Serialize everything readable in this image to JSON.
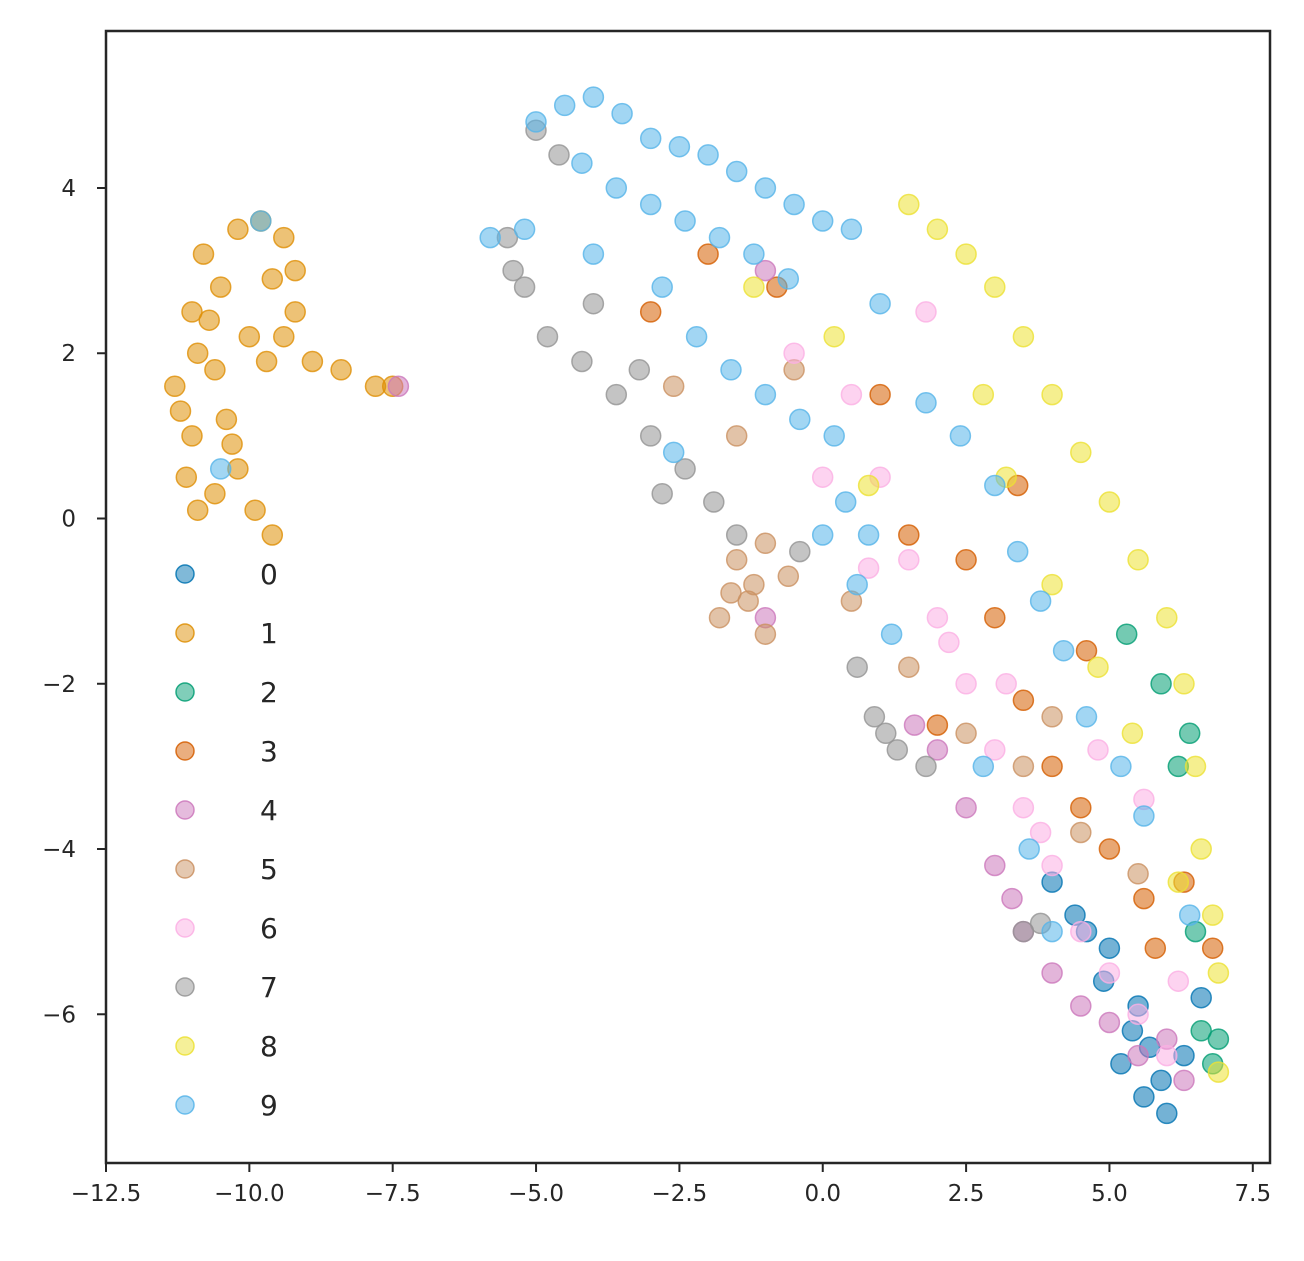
{
  "chart_data": {
    "type": "scatter",
    "title": "",
    "xlabel": "",
    "ylabel": "",
    "xlim": [
      -12.5,
      7.8
    ],
    "ylim": [
      -7.8,
      5.9
    ],
    "grid": false,
    "legend": {
      "placement": "lower-left",
      "entries": [
        "0",
        "1",
        "2",
        "3",
        "4",
        "5",
        "6",
        "7",
        "8",
        "9"
      ]
    },
    "x_ticks": [
      {
        "value": -12.5,
        "label": "−12.5"
      },
      {
        "value": -10.0,
        "label": "−10.0"
      },
      {
        "value": -7.5,
        "label": "−7.5"
      },
      {
        "value": -5.0,
        "label": "−5.0"
      },
      {
        "value": -2.5,
        "label": "−2.5"
      },
      {
        "value": 0.0,
        "label": "0.0"
      },
      {
        "value": 2.5,
        "label": "2.5"
      },
      {
        "value": 5.0,
        "label": "5.0"
      },
      {
        "value": 7.5,
        "label": "7.5"
      }
    ],
    "y_ticks": [
      {
        "value": -6,
        "label": "−6"
      },
      {
        "value": -4,
        "label": "−4"
      },
      {
        "value": -2,
        "label": "−2"
      },
      {
        "value": 0,
        "label": "0"
      },
      {
        "value": 2,
        "label": "2"
      },
      {
        "value": 4,
        "label": "4"
      }
    ],
    "series": [
      {
        "name": "0",
        "color": "#0173b2",
        "points": [
          [
            5.2,
            -6.6
          ],
          [
            5.6,
            -7.0
          ],
          [
            6.0,
            -7.2
          ],
          [
            5.9,
            -6.8
          ],
          [
            5.4,
            -6.2
          ],
          [
            4.9,
            -5.6
          ],
          [
            4.4,
            -4.8
          ],
          [
            4.0,
            -4.4
          ],
          [
            6.3,
            -6.5
          ],
          [
            5.7,
            -6.4
          ],
          [
            5.0,
            -5.2
          ],
          [
            6.6,
            -5.8
          ],
          [
            5.5,
            -5.9
          ],
          [
            4.6,
            -5.0
          ]
        ]
      },
      {
        "name": "1",
        "color": "#de8f05",
        "points": [
          [
            -11.3,
            1.6
          ],
          [
            -11.0,
            2.5
          ],
          [
            -10.8,
            3.2
          ],
          [
            -10.2,
            3.5
          ],
          [
            -9.8,
            3.6
          ],
          [
            -10.5,
            2.8
          ],
          [
            -9.6,
            2.9
          ],
          [
            -9.2,
            2.5
          ],
          [
            -10.0,
            2.2
          ],
          [
            -10.6,
            1.8
          ],
          [
            -9.7,
            1.9
          ],
          [
            -8.9,
            1.9
          ],
          [
            -8.4,
            1.8
          ],
          [
            -7.8,
            1.6
          ],
          [
            -7.5,
            1.6
          ],
          [
            -11.0,
            1.0
          ],
          [
            -11.1,
            0.5
          ],
          [
            -10.9,
            0.1
          ],
          [
            -10.6,
            0.3
          ],
          [
            -10.2,
            0.6
          ],
          [
            -9.9,
            0.1
          ],
          [
            -9.6,
            -0.2
          ],
          [
            -9.4,
            2.2
          ],
          [
            -9.2,
            3.0
          ],
          [
            -10.4,
            1.2
          ],
          [
            -11.2,
            1.3
          ],
          [
            -10.7,
            2.4
          ],
          [
            -9.4,
            3.4
          ],
          [
            -10.9,
            2.0
          ],
          [
            -10.3,
            0.9
          ]
        ]
      },
      {
        "name": "2",
        "color": "#029e73",
        "points": [
          [
            6.6,
            -6.2
          ],
          [
            6.8,
            -6.6
          ],
          [
            6.5,
            -5.0
          ],
          [
            6.2,
            -3.0
          ],
          [
            5.9,
            -2.0
          ],
          [
            6.4,
            -2.6
          ],
          [
            5.3,
            -1.4
          ],
          [
            6.9,
            -6.3
          ]
        ]
      },
      {
        "name": "3",
        "color": "#d55e00",
        "points": [
          [
            1.5,
            -0.2
          ],
          [
            2.5,
            -0.5
          ],
          [
            3.0,
            -1.2
          ],
          [
            3.5,
            -2.2
          ],
          [
            4.0,
            -3.0
          ],
          [
            4.5,
            -3.5
          ],
          [
            5.0,
            -4.0
          ],
          [
            5.6,
            -4.6
          ],
          [
            6.3,
            -4.4
          ],
          [
            6.8,
            -5.2
          ],
          [
            -0.8,
            2.8
          ],
          [
            -2.0,
            3.2
          ],
          [
            -3.0,
            2.5
          ],
          [
            1.0,
            1.5
          ],
          [
            2.0,
            -2.5
          ],
          [
            4.6,
            -1.6
          ],
          [
            5.8,
            -5.2
          ],
          [
            3.4,
            0.4
          ]
        ]
      },
      {
        "name": "4",
        "color": "#cc78bc",
        "points": [
          [
            2.0,
            -2.8
          ],
          [
            2.5,
            -3.5
          ],
          [
            3.0,
            -4.2
          ],
          [
            3.5,
            -5.0
          ],
          [
            4.0,
            -5.5
          ],
          [
            4.5,
            -5.9
          ],
          [
            5.0,
            -6.1
          ],
          [
            5.5,
            -6.5
          ],
          [
            6.3,
            -6.8
          ],
          [
            1.6,
            -2.5
          ],
          [
            -1.0,
            3.0
          ],
          [
            -1.0,
            -1.2
          ],
          [
            -7.4,
            1.6
          ],
          [
            3.3,
            -4.6
          ],
          [
            6.0,
            -6.3
          ]
        ]
      },
      {
        "name": "5",
        "color": "#ca9161",
        "points": [
          [
            -1.5,
            -0.5
          ],
          [
            -1.3,
            -1.0
          ],
          [
            -1.0,
            -1.4
          ],
          [
            -1.8,
            -1.2
          ],
          [
            -1.2,
            -0.8
          ],
          [
            -0.6,
            -0.7
          ],
          [
            -1.6,
            -0.9
          ],
          [
            -1.0,
            -0.3
          ],
          [
            0.5,
            -1.0
          ],
          [
            1.5,
            -1.8
          ],
          [
            2.5,
            -2.6
          ],
          [
            3.5,
            -3.0
          ],
          [
            4.5,
            -3.8
          ],
          [
            5.5,
            -4.3
          ],
          [
            -0.5,
            1.8
          ],
          [
            -1.5,
            1.0
          ],
          [
            -2.6,
            1.6
          ],
          [
            4.0,
            -2.4
          ]
        ]
      },
      {
        "name": "6",
        "color": "#fbafe4",
        "points": [
          [
            0.5,
            1.5
          ],
          [
            1.0,
            0.5
          ],
          [
            1.5,
            -0.5
          ],
          [
            2.0,
            -1.2
          ],
          [
            2.5,
            -2.0
          ],
          [
            3.0,
            -2.8
          ],
          [
            3.5,
            -3.5
          ],
          [
            4.0,
            -4.2
          ],
          [
            4.5,
            -5.0
          ],
          [
            5.0,
            -5.5
          ],
          [
            5.5,
            -6.0
          ],
          [
            6.0,
            -6.5
          ],
          [
            -0.5,
            2.0
          ],
          [
            0.0,
            0.5
          ],
          [
            1.8,
            2.5
          ],
          [
            2.2,
            -1.5
          ],
          [
            3.2,
            -2.0
          ],
          [
            4.8,
            -2.8
          ],
          [
            5.6,
            -3.4
          ],
          [
            6.2,
            -5.6
          ],
          [
            0.8,
            -0.6
          ],
          [
            3.8,
            -3.8
          ]
        ]
      },
      {
        "name": "7",
        "color": "#949494",
        "points": [
          [
            -5.5,
            3.4
          ],
          [
            -5.2,
            2.8
          ],
          [
            -4.8,
            2.2
          ],
          [
            -4.2,
            1.9
          ],
          [
            -3.6,
            1.5
          ],
          [
            -3.0,
            1.0
          ],
          [
            -2.4,
            0.6
          ],
          [
            -1.9,
            0.2
          ],
          [
            -1.5,
            -0.2
          ],
          [
            -4.6,
            4.4
          ],
          [
            -5.0,
            4.7
          ],
          [
            -4.0,
            2.6
          ],
          [
            -3.2,
            1.8
          ],
          [
            0.6,
            -1.8
          ],
          [
            0.9,
            -2.4
          ],
          [
            1.3,
            -2.8
          ],
          [
            1.8,
            -3.0
          ],
          [
            3.5,
            -5.0
          ],
          [
            3.8,
            -4.9
          ],
          [
            -5.4,
            3.0
          ],
          [
            -2.8,
            0.3
          ],
          [
            -0.4,
            -0.4
          ],
          [
            1.1,
            -2.6
          ]
        ]
      },
      {
        "name": "8",
        "color": "#ece133",
        "points": [
          [
            1.5,
            3.8
          ],
          [
            2.0,
            3.5
          ],
          [
            2.5,
            3.2
          ],
          [
            3.0,
            2.8
          ],
          [
            3.5,
            2.2
          ],
          [
            4.0,
            1.5
          ],
          [
            4.5,
            0.8
          ],
          [
            5.0,
            0.2
          ],
          [
            5.5,
            -0.5
          ],
          [
            6.0,
            -1.2
          ],
          [
            6.3,
            -2.0
          ],
          [
            6.5,
            -3.0
          ],
          [
            6.6,
            -4.0
          ],
          [
            6.8,
            -4.8
          ],
          [
            6.9,
            -5.5
          ],
          [
            6.9,
            -6.7
          ],
          [
            2.8,
            1.5
          ],
          [
            3.2,
            0.5
          ],
          [
            4.0,
            -0.8
          ],
          [
            4.8,
            -1.8
          ],
          [
            5.4,
            -2.6
          ],
          [
            0.8,
            0.4
          ],
          [
            -1.2,
            2.8
          ],
          [
            0.2,
            2.2
          ],
          [
            6.2,
            -4.4
          ]
        ]
      },
      {
        "name": "9",
        "color": "#56b4e9",
        "points": [
          [
            -5.0,
            4.8
          ],
          [
            -4.5,
            5.0
          ],
          [
            -4.0,
            5.1
          ],
          [
            -3.5,
            4.9
          ],
          [
            -3.0,
            4.6
          ],
          [
            -2.5,
            4.5
          ],
          [
            -2.0,
            4.4
          ],
          [
            -1.5,
            4.2
          ],
          [
            -1.0,
            4.0
          ],
          [
            -0.5,
            3.8
          ],
          [
            0.0,
            3.6
          ],
          [
            0.5,
            3.5
          ],
          [
            -4.2,
            4.3
          ],
          [
            -3.6,
            4.0
          ],
          [
            -3.0,
            3.8
          ],
          [
            -2.4,
            3.6
          ],
          [
            -1.8,
            3.4
          ],
          [
            -1.2,
            3.2
          ],
          [
            -0.6,
            2.9
          ],
          [
            -5.2,
            3.5
          ],
          [
            -4.0,
            3.2
          ],
          [
            -2.8,
            2.8
          ],
          [
            -2.2,
            2.2
          ],
          [
            -1.6,
            1.8
          ],
          [
            -1.0,
            1.5
          ],
          [
            -0.4,
            1.2
          ],
          [
            0.2,
            1.0
          ],
          [
            0.4,
            0.2
          ],
          [
            0.0,
            -0.2
          ],
          [
            0.6,
            -0.8
          ],
          [
            1.2,
            -1.4
          ],
          [
            1.8,
            1.4
          ],
          [
            2.4,
            1.0
          ],
          [
            3.0,
            0.4
          ],
          [
            3.4,
            -0.4
          ],
          [
            3.8,
            -1.0
          ],
          [
            4.2,
            -1.6
          ],
          [
            4.6,
            -2.4
          ],
          [
            5.2,
            -3.0
          ],
          [
            5.6,
            -3.6
          ],
          [
            2.8,
            -3.0
          ],
          [
            3.6,
            -4.0
          ],
          [
            4.0,
            -5.0
          ],
          [
            6.4,
            -4.8
          ],
          [
            -5.8,
            3.4
          ],
          [
            -9.8,
            3.6
          ],
          [
            -10.5,
            0.6
          ],
          [
            -2.6,
            0.8
          ],
          [
            1.0,
            2.6
          ],
          [
            0.8,
            -0.2
          ]
        ]
      }
    ]
  }
}
